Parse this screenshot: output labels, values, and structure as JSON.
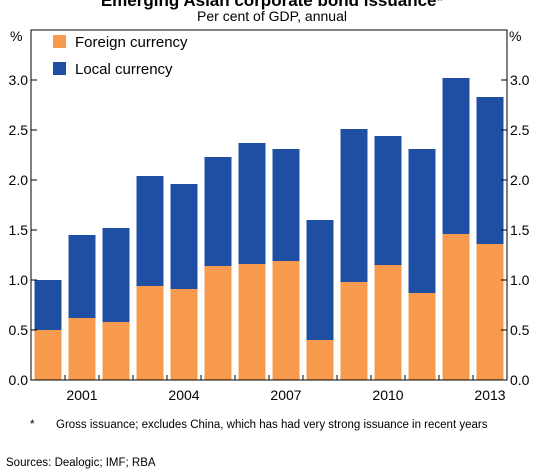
{
  "chart_data": {
    "type": "bar",
    "stacked": true,
    "title": "Emerging Asian corporate bond issuance*",
    "subtitle": "Per cent of GDP, annual",
    "unit_left": "%",
    "unit_right": "%",
    "x": [
      2000,
      2001,
      2002,
      2003,
      2004,
      2005,
      2006,
      2007,
      2008,
      2009,
      2010,
      2011,
      2012,
      2013
    ],
    "x_tick_labels": [
      "2001",
      "2004",
      "2007",
      "2010",
      "2013"
    ],
    "x_tick_values": [
      2001,
      2004,
      2007,
      2010,
      2013
    ],
    "series": [
      {
        "name": "Foreign currency",
        "color": "#F79A4E",
        "values": [
          0.5,
          0.62,
          0.58,
          0.94,
          0.91,
          1.14,
          1.16,
          1.19,
          0.4,
          0.98,
          1.15,
          0.87,
          1.46,
          1.36
        ]
      },
      {
        "name": "Local currency",
        "color": "#1F4FA3",
        "values": [
          0.5,
          0.83,
          0.94,
          1.1,
          1.05,
          1.09,
          1.21,
          1.12,
          1.2,
          1.53,
          1.29,
          1.44,
          1.56,
          1.47
        ]
      }
    ],
    "ylim": [
      0,
      3.5
    ],
    "y_ticks": [
      "0.0",
      "0.5",
      "1.0",
      "1.5",
      "2.0",
      "2.5",
      "3.0"
    ],
    "y_tick_values": [
      0,
      0.5,
      1.0,
      1.5,
      2.0,
      2.5,
      3.0
    ],
    "legend_position": "top-left",
    "grid": false
  },
  "notes": {
    "footnote_marker": "*",
    "footnote": "Gross issuance; excludes China, which has had very strong issuance in recent years",
    "sources": "Sources:  Dealogic; IMF; RBA"
  }
}
